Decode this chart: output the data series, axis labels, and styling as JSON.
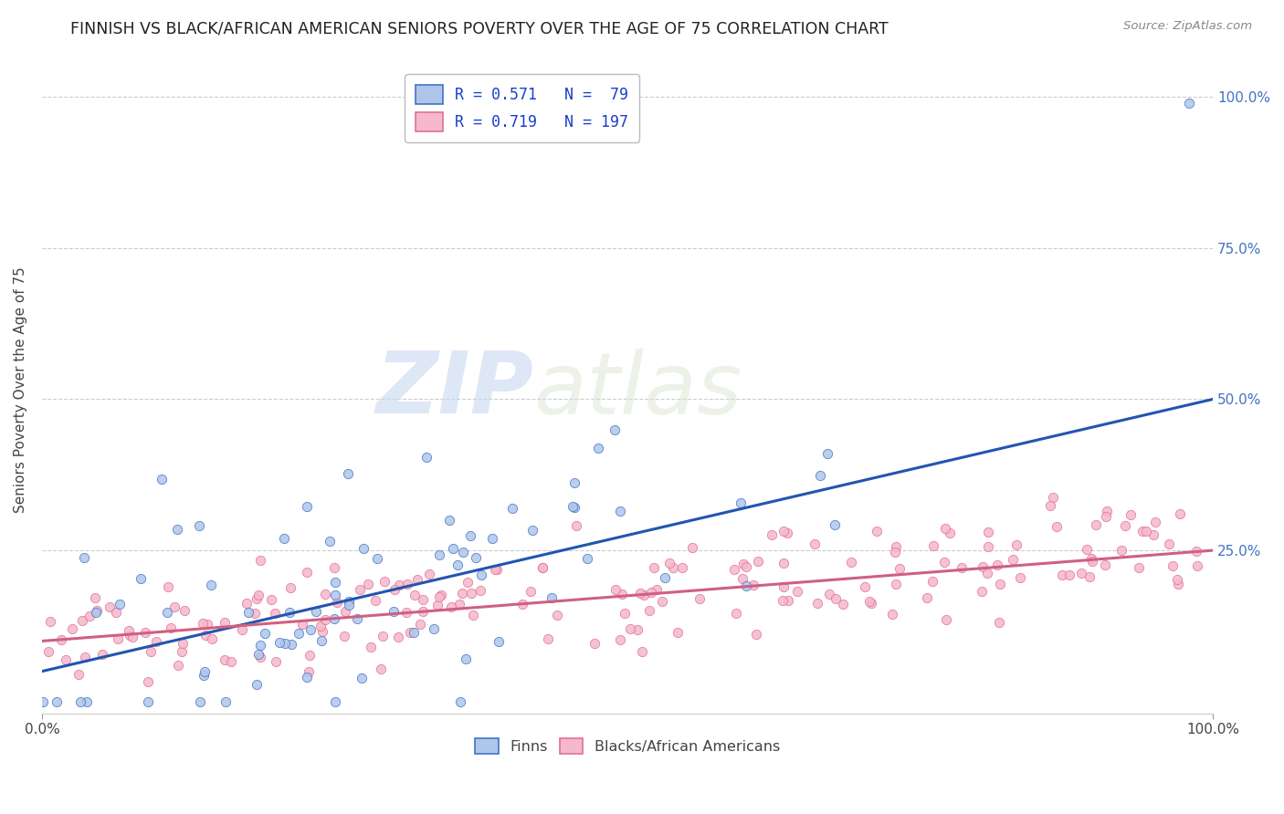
{
  "title": "FINNISH VS BLACK/AFRICAN AMERICAN SENIORS POVERTY OVER THE AGE OF 75 CORRELATION CHART",
  "source": "Source: ZipAtlas.com",
  "ylabel": "Seniors Poverty Over the Age of 75",
  "watermark_zip": "ZIP",
  "watermark_atlas": "atlas",
  "xlim": [
    0,
    1
  ],
  "ylim": [
    -0.02,
    1.05
  ],
  "xticklabels_pos": [
    0.0,
    1.0
  ],
  "xticklabels": [
    "0.0%",
    "100.0%"
  ],
  "ytick_right_labels": [
    "100.0%",
    "75.0%",
    "50.0%",
    "25.0%"
  ],
  "ytick_right_values": [
    1.0,
    0.75,
    0.5,
    0.25
  ],
  "finn_color": "#aec6ea",
  "finn_edge_color": "#4472c4",
  "finn_line_color": "#2255b0",
  "black_color": "#f5b8cc",
  "black_edge_color": "#e07090",
  "black_line_color": "#d06080",
  "finn_R": 0.571,
  "finn_N": 79,
  "black_R": 0.719,
  "black_N": 197,
  "legend_text_color": "#1a3fcc",
  "title_fontsize": 12.5,
  "axis_label_fontsize": 11,
  "tick_fontsize": 11,
  "legend_fontsize": 12,
  "background_color": "#ffffff",
  "grid_color": "#cccccc",
  "right_tick_color": "#4472c4",
  "finn_line_intercept": 0.05,
  "finn_line_slope": 0.45,
  "black_line_intercept": 0.1,
  "black_line_slope": 0.15
}
